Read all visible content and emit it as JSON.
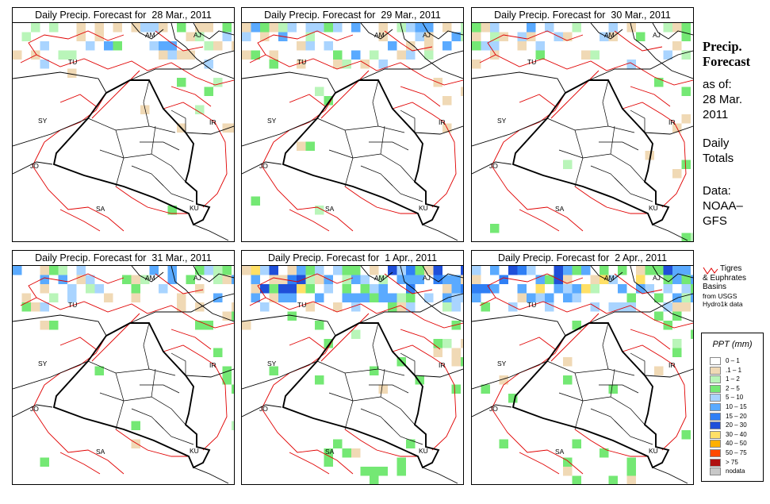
{
  "panels": [
    {
      "title": "Daily Precip. Forecast for  28 Mar., 2011",
      "intensity": 1
    },
    {
      "title": "Daily Precip. Forecast for  29 Mar., 2011",
      "intensity": 2
    },
    {
      "title": "Daily Precip. Forecast for  30 Mar., 2011",
      "intensity": 1
    },
    {
      "title": "Daily Precip. Forecast for  31 Mar., 2011",
      "intensity": 2
    },
    {
      "title": "Daily Precip. Forecast for  1 Apr., 2011",
      "intensity": 4
    },
    {
      "title": "Daily Precip. Forecast for  2 Apr., 2011",
      "intensity": 4
    }
  ],
  "country_labels": [
    "AM",
    "AJ",
    "TU",
    "SY",
    "IR",
    "JO",
    "SA",
    "KU"
  ],
  "side": {
    "title_line1": "Precip.",
    "title_line2": "Forecast",
    "asof_line1": "as of:",
    "asof_line2": "28 Mar.",
    "asof_line3": "2011",
    "daily_line1": "Daily",
    "daily_line2": "Totals",
    "data_line1": "Data:",
    "data_line2": "NOAA–",
    "data_line3": "GFS"
  },
  "basin_note": {
    "line1": "Tigres",
    "line2": "& Euphrates",
    "line3": "Basins",
    "line4": "from USGS",
    "line5": "Hydro1k data"
  },
  "legend": {
    "title": "PPT (mm)",
    "items": [
      {
        "label": "0 – 1",
        "color": "#ffffff"
      },
      {
        "label": ".1 – 1",
        "color": "#f0d9b5"
      },
      {
        "label": "1 – 2",
        "color": "#b9f5b9"
      },
      {
        "label": "2 – 5",
        "color": "#74e874"
      },
      {
        "label": "5 – 10",
        "color": "#a9d4ff"
      },
      {
        "label": "10 – 15",
        "color": "#5aaaff"
      },
      {
        "label": "15 – 20",
        "color": "#2f7ff5"
      },
      {
        "label": "20 – 30",
        "color": "#1f4fd9"
      },
      {
        "label": "30 – 40",
        "color": "#ffe066"
      },
      {
        "label": "40 – 50",
        "color": "#ffb000"
      },
      {
        "label": "50 – 75",
        "color": "#ff4a00"
      },
      {
        "label": "> 75",
        "color": "#b01010"
      },
      {
        "label": "nodata",
        "color": "#c8c8c8"
      }
    ]
  }
}
